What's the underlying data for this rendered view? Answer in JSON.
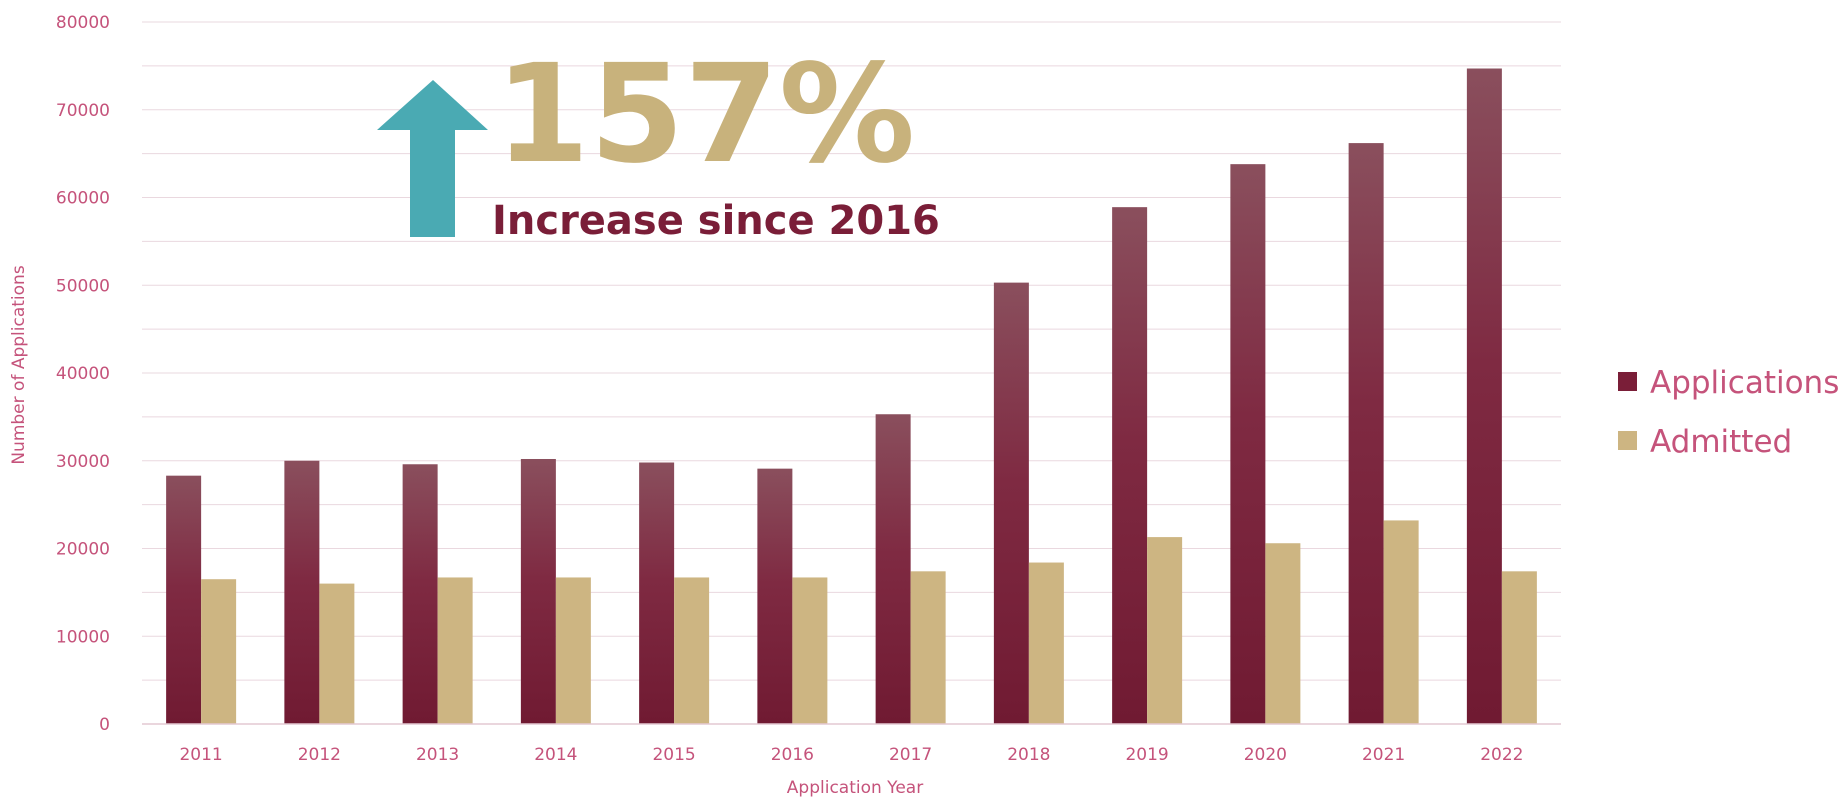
{
  "chart_data": {
    "type": "bar",
    "categories": [
      "2011",
      "2012",
      "2013",
      "2014",
      "2015",
      "2016",
      "2017",
      "2018",
      "2019",
      "2020",
      "2021",
      "2022"
    ],
    "series": [
      {
        "name": "Applications",
        "values": [
          28300,
          30000,
          29600,
          30200,
          29800,
          29100,
          35300,
          50300,
          58900,
          63800,
          66200,
          74700
        ]
      },
      {
        "name": "Admitted",
        "values": [
          16500,
          16000,
          16700,
          16700,
          16700,
          16700,
          17400,
          18400,
          21300,
          20600,
          23200,
          17400
        ]
      }
    ],
    "xlabel": "Application Year",
    "ylabel": "Number of Applications",
    "ylim": [
      0,
      80000
    ],
    "yticks": [
      0,
      10000,
      20000,
      30000,
      40000,
      50000,
      60000,
      70000,
      80000
    ],
    "grid": true,
    "legend_position": "right",
    "annotation": {
      "percent": "157%",
      "text": "Increase since 2016",
      "icon": "up-arrow-icon"
    }
  },
  "colors": {
    "applications": "#7a1e38",
    "applications_top": "#8a4f5d",
    "admitted": "#cdb582",
    "tick_text": "#c5537b",
    "gridline": "#ead8df",
    "arrow": "#4aaab3",
    "percent_text": "#c8b27c",
    "increase_text": "#7a1e38"
  }
}
